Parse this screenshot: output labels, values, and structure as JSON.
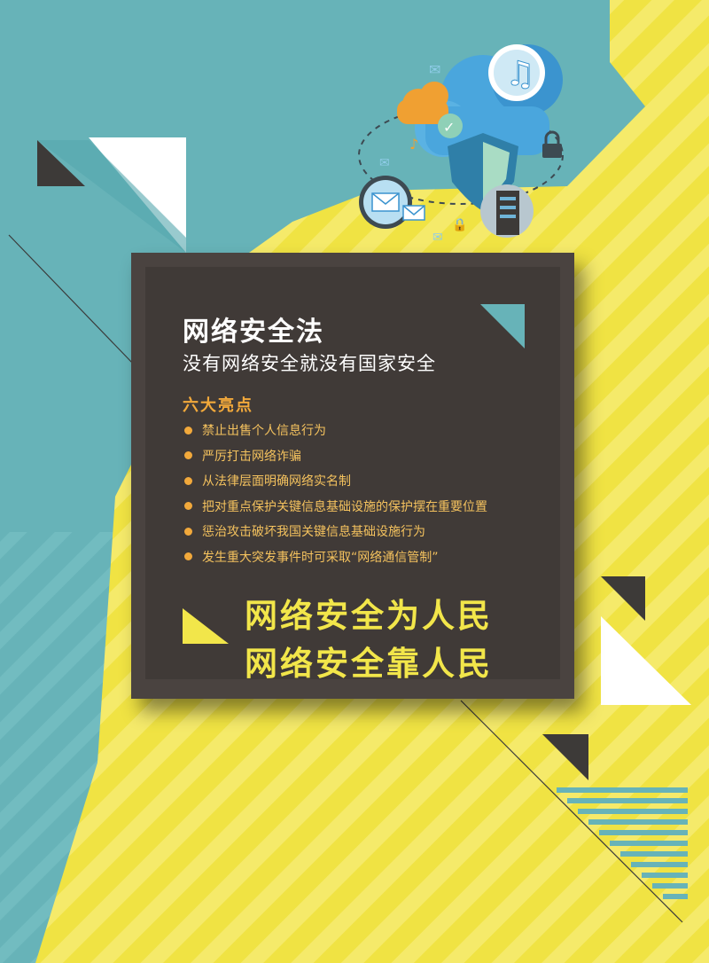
{
  "poster": {
    "title": "网络安全法",
    "subtitle": "没有网络安全就没有国家安全",
    "highlights_heading": "六大亮点",
    "highlights": [
      "禁止出售个人信息行为",
      "严厉打击网络诈骗",
      "从法律层面明确网络实名制",
      "把对重点保护关键信息基础设施的保护摆在重要位置",
      "惩治攻击破坏我国关键信息基础设施行为",
      "发生重大突发事件时可采取“网络通信管制”"
    ],
    "slogans": [
      "网络安全为人民",
      "网络安全靠人民"
    ]
  },
  "colors": {
    "teal": "#67b3b8",
    "yellow": "#f0e343",
    "panel": "#403a37",
    "accent_orange": "#f2a93b",
    "slogan_yellow": "#f2e64a"
  }
}
